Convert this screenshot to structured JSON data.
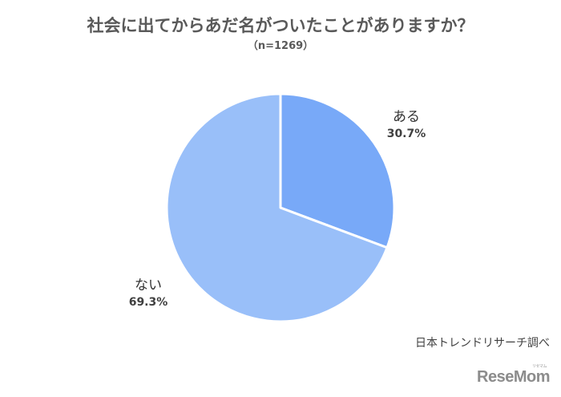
{
  "title": "社会に出てからあだ名がついたことがありますか？",
  "subtitle": "（n=1269）",
  "source": "日本トレンドリサーチ調べ",
  "logo": {
    "text": "ReseMom",
    "ruby": "リセマム"
  },
  "slices": [
    {
      "label": "ある",
      "value_text": "30.7%",
      "color": "#78a9f8"
    },
    {
      "label": "ない",
      "value_text": "69.3%",
      "color": "#99bff9"
    }
  ],
  "chart_data": {
    "type": "pie",
    "title": "社会に出てからあだ名がついたことがありますか？",
    "subtitle": "（n=1269）",
    "categories": [
      "ある",
      "ない"
    ],
    "values": [
      30.7,
      69.3
    ],
    "colors": [
      "#78a9f8",
      "#99bff9"
    ],
    "start_angle": "12 o'clock, clockwise",
    "legend": "none (data labels outside slices)",
    "annotations": [
      "日本トレンドリサーチ調べ"
    ]
  }
}
